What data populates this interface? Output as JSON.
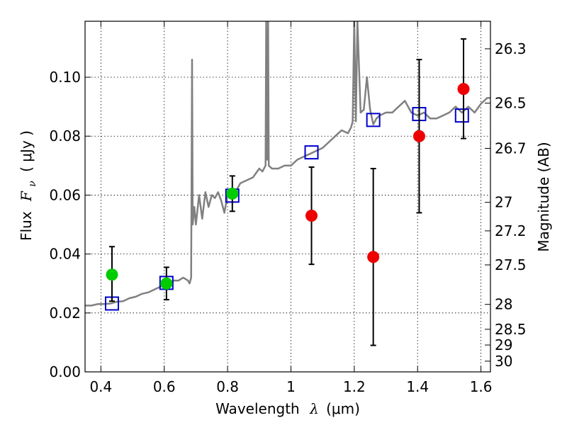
{
  "chart_data": {
    "type": "scatter",
    "xlabel_prefix": "Wavelength",
    "xlabel_symbol": "λ",
    "xlabel_unit": "(μm)",
    "ylabel_prefix": "Flux",
    "ylabel_symbol": "F",
    "ylabel_subscript": "ν",
    "ylabel_unit": "( μJy )",
    "y2label": "Magnitude (AB)",
    "xlim": [
      0.35,
      1.63
    ],
    "ylim": [
      0.0,
      0.119
    ],
    "grid": true,
    "x_ticks": [
      {
        "value": 0.4,
        "label": "0.4"
      },
      {
        "value": 0.6,
        "label": "0.6"
      },
      {
        "value": 0.8,
        "label": "0.8"
      },
      {
        "value": 1.0,
        "label": "1"
      },
      {
        "value": 1.2,
        "label": "1.2"
      },
      {
        "value": 1.4,
        "label": "1.4"
      },
      {
        "value": 1.6,
        "label": "1.6"
      }
    ],
    "y_ticks": [
      {
        "value": 0.0,
        "label": "0.00"
      },
      {
        "value": 0.02,
        "label": "0.02"
      },
      {
        "value": 0.04,
        "label": "0.04"
      },
      {
        "value": 0.06,
        "label": "0.06"
      },
      {
        "value": 0.08,
        "label": "0.08"
      },
      {
        "value": 0.1,
        "label": "0.10"
      }
    ],
    "mag_ticks": [
      {
        "value": 26.3,
        "label": "26.3"
      },
      {
        "value": 26.5,
        "label": "26.5"
      },
      {
        "value": 26.7,
        "label": "26.7"
      },
      {
        "value": 27.0,
        "label": "27"
      },
      {
        "value": 27.2,
        "label": "27.2"
      },
      {
        "value": 27.5,
        "label": "27.5"
      },
      {
        "value": 28.0,
        "label": "28"
      },
      {
        "value": 28.5,
        "label": "28.5"
      },
      {
        "value": 29.0,
        "label": "29"
      },
      {
        "value": 30.0,
        "label": "30"
      }
    ],
    "series": [
      {
        "kind": "line",
        "color": "#808080",
        "x": [
          0.35,
          0.37,
          0.39,
          0.41,
          0.43,
          0.45,
          0.47,
          0.49,
          0.51,
          0.53,
          0.55,
          0.57,
          0.59,
          0.61,
          0.63,
          0.645,
          0.66,
          0.675,
          0.68,
          0.685,
          0.686,
          0.688,
          0.69,
          0.695,
          0.7,
          0.71,
          0.72,
          0.73,
          0.74,
          0.75,
          0.76,
          0.77,
          0.78,
          0.79,
          0.8,
          0.81,
          0.82,
          0.83,
          0.84,
          0.86,
          0.88,
          0.9,
          0.91,
          0.92,
          0.922,
          0.925,
          0.928,
          0.93,
          0.94,
          0.96,
          0.98,
          1.0,
          1.02,
          1.04,
          1.06,
          1.08,
          1.1,
          1.12,
          1.14,
          1.16,
          1.18,
          1.19,
          1.195,
          1.2,
          1.205,
          1.21,
          1.22,
          1.23,
          1.24,
          1.25,
          1.26,
          1.27,
          1.28,
          1.3,
          1.32,
          1.34,
          1.36,
          1.38,
          1.4,
          1.42,
          1.44,
          1.46,
          1.48,
          1.5,
          1.52,
          1.54,
          1.56,
          1.58,
          1.6,
          1.62,
          1.63
        ],
        "y": [
          0.0225,
          0.0225,
          0.023,
          0.023,
          0.0232,
          0.0238,
          0.024,
          0.025,
          0.0255,
          0.0265,
          0.027,
          0.028,
          0.029,
          0.03,
          0.031,
          0.031,
          0.032,
          0.031,
          0.03,
          0.032,
          0.06,
          0.106,
          0.05,
          0.056,
          0.05,
          0.06,
          0.052,
          0.061,
          0.056,
          0.06,
          0.059,
          0.061,
          0.058,
          0.054,
          0.06,
          0.06,
          0.062,
          0.062,
          0.064,
          0.065,
          0.066,
          0.069,
          0.068,
          0.07,
          0.119,
          0.072,
          0.119,
          0.07,
          0.069,
          0.069,
          0.07,
          0.07,
          0.072,
          0.073,
          0.074,
          0.075,
          0.076,
          0.078,
          0.08,
          0.082,
          0.081,
          0.083,
          0.085,
          0.119,
          0.085,
          0.119,
          0.088,
          0.089,
          0.1,
          0.089,
          0.084,
          0.086,
          0.087,
          0.088,
          0.088,
          0.09,
          0.092,
          0.088,
          0.087,
          0.088,
          0.086,
          0.086,
          0.087,
          0.088,
          0.09,
          0.088,
          0.09,
          0.088,
          0.091,
          0.093,
          0.093
        ]
      },
      {
        "kind": "open-square",
        "color": "#0000cc",
        "x": [
          0.435,
          0.607,
          0.815,
          1.065,
          1.26,
          1.405,
          1.54
        ],
        "y": [
          0.0232,
          0.0302,
          0.0598,
          0.0745,
          0.0855,
          0.0875,
          0.087
        ]
      },
      {
        "kind": "filled-circle",
        "color": "#00cc00",
        "x": [
          0.435,
          0.607,
          0.815
        ],
        "y": [
          0.033,
          0.03,
          0.0605
        ],
        "err_low": [
          0.024,
          0.0245,
          0.0545
        ],
        "err_high": [
          0.0425,
          0.0355,
          0.0665
        ]
      },
      {
        "kind": "filled-circle",
        "color": "#ee0000",
        "x": [
          1.065,
          1.26,
          1.405,
          1.545
        ],
        "y": [
          0.053,
          0.039,
          0.08,
          0.096
        ],
        "err_low": [
          0.0365,
          0.009,
          0.054,
          0.0792
        ],
        "err_high": [
          0.0695,
          0.069,
          0.106,
          0.113
        ]
      }
    ]
  }
}
